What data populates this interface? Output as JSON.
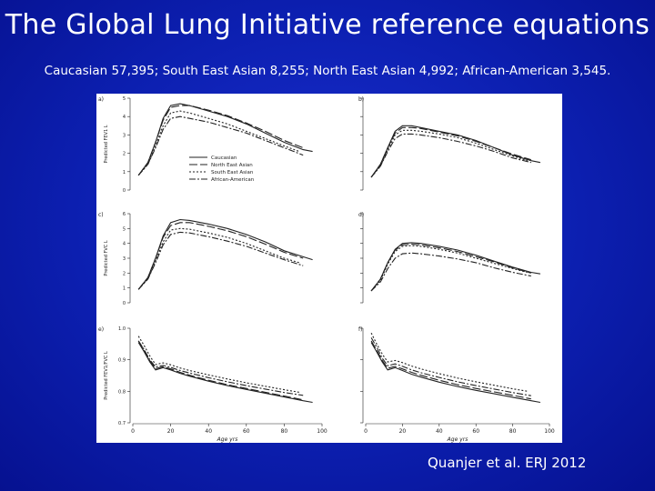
{
  "header": {
    "title": "The Global Lung Initiative reference equations",
    "subtitle": "Caucasian 57,395; South East Asian 8,255; North East Asian 4,992; African-American 3,545."
  },
  "citation": "Quanjer et al. ERJ 2012",
  "colors": {
    "background": "#0c1fb0",
    "text": "#ffffff",
    "plot_ink": "#222222"
  },
  "chart_data": [
    {
      "panel": "a)",
      "type": "line",
      "ylabel": "Predicted FEV1 L",
      "xlabel": "",
      "xlim": [
        0,
        100
      ],
      "ylim": [
        0,
        5
      ],
      "yticks": [
        0,
        1,
        2,
        3,
        4,
        5
      ],
      "xticks": [
        0,
        20,
        40,
        60,
        80,
        100
      ],
      "legend_position": "bottom-center",
      "series": [
        {
          "name": "Caucasian",
          "x": [
            3,
            8,
            12,
            16,
            20,
            25,
            30,
            40,
            50,
            60,
            70,
            80,
            90,
            95
          ],
          "y": [
            0.8,
            1.5,
            2.6,
            3.9,
            4.6,
            4.7,
            4.6,
            4.3,
            4.0,
            3.6,
            3.1,
            2.6,
            2.2,
            2.1
          ]
        },
        {
          "name": "North East Asian",
          "x": [
            3,
            8,
            12,
            16,
            20,
            25,
            30,
            40,
            50,
            60,
            70,
            80,
            90
          ],
          "y": [
            0.8,
            1.5,
            2.6,
            3.8,
            4.5,
            4.6,
            4.6,
            4.35,
            4.05,
            3.65,
            3.2,
            2.7,
            2.3
          ]
        },
        {
          "name": "South East Asian",
          "x": [
            3,
            8,
            12,
            16,
            20,
            25,
            30,
            40,
            50,
            60,
            70,
            80,
            88
          ],
          "y": [
            0.8,
            1.4,
            2.4,
            3.5,
            4.2,
            4.3,
            4.2,
            3.9,
            3.6,
            3.2,
            2.8,
            2.4,
            2.1
          ]
        },
        {
          "name": "African-American",
          "x": [
            3,
            8,
            12,
            16,
            20,
            25,
            30,
            40,
            50,
            60,
            70,
            80,
            90
          ],
          "y": [
            0.8,
            1.4,
            2.3,
            3.3,
            3.9,
            4.0,
            3.9,
            3.7,
            3.4,
            3.1,
            2.7,
            2.3,
            1.9
          ]
        }
      ]
    },
    {
      "panel": "b)",
      "type": "line",
      "ylabel": "",
      "xlabel": "",
      "xlim": [
        0,
        100
      ],
      "ylim": [
        0,
        5
      ],
      "series": [
        {
          "name": "",
          "x": [
            3,
            8,
            12,
            16,
            20,
            25,
            30,
            40,
            50,
            60,
            70,
            80,
            90,
            95
          ],
          "y": [
            0.7,
            1.4,
            2.3,
            3.2,
            3.5,
            3.5,
            3.4,
            3.2,
            3.0,
            2.7,
            2.3,
            1.9,
            1.6,
            1.5
          ]
        },
        {
          "name": "",
          "x": [
            3,
            8,
            12,
            16,
            20,
            25,
            30,
            40,
            50,
            60,
            70,
            80,
            90
          ],
          "y": [
            0.7,
            1.4,
            2.3,
            3.1,
            3.4,
            3.4,
            3.35,
            3.15,
            2.95,
            2.65,
            2.3,
            1.95,
            1.65
          ]
        },
        {
          "name": "",
          "x": [
            3,
            8,
            12,
            16,
            20,
            25,
            30,
            40,
            50,
            60,
            70,
            80,
            88
          ],
          "y": [
            0.7,
            1.3,
            2.2,
            3.0,
            3.25,
            3.25,
            3.2,
            3.05,
            2.85,
            2.55,
            2.2,
            1.85,
            1.6
          ]
        },
        {
          "name": "",
          "x": [
            3,
            8,
            12,
            16,
            20,
            25,
            30,
            40,
            50,
            60,
            70,
            80,
            90
          ],
          "y": [
            0.7,
            1.3,
            2.1,
            2.8,
            3.05,
            3.05,
            3.0,
            2.85,
            2.65,
            2.4,
            2.1,
            1.75,
            1.5
          ]
        }
      ]
    },
    {
      "panel": "c)",
      "type": "line",
      "ylabel": "Predicted FVC L",
      "xlabel": "",
      "xlim": [
        0,
        100
      ],
      "ylim": [
        0,
        6
      ],
      "yticks": [
        0,
        1,
        2,
        3,
        4,
        5,
        6
      ],
      "xticks": [
        0,
        20,
        40,
        60,
        80,
        100
      ],
      "series": [
        {
          "name": "Caucasian",
          "x": [
            3,
            8,
            12,
            16,
            20,
            25,
            30,
            40,
            50,
            60,
            70,
            80,
            90,
            95
          ],
          "y": [
            0.9,
            1.7,
            3.0,
            4.5,
            5.4,
            5.6,
            5.55,
            5.3,
            5.0,
            4.6,
            4.1,
            3.5,
            3.1,
            2.9
          ]
        },
        {
          "name": "North East Asian",
          "x": [
            3,
            8,
            12,
            16,
            20,
            25,
            30,
            40,
            50,
            60,
            70,
            80,
            90
          ],
          "y": [
            0.9,
            1.7,
            3.0,
            4.4,
            5.2,
            5.4,
            5.4,
            5.15,
            4.85,
            4.45,
            3.95,
            3.4,
            3.0
          ]
        },
        {
          "name": "South East Asian",
          "x": [
            3,
            8,
            12,
            16,
            20,
            25,
            30,
            40,
            50,
            60,
            70,
            80,
            88
          ],
          "y": [
            0.9,
            1.6,
            2.8,
            4.1,
            4.9,
            5.0,
            4.95,
            4.7,
            4.4,
            4.0,
            3.5,
            3.0,
            2.7
          ]
        },
        {
          "name": "African-American",
          "x": [
            3,
            8,
            12,
            16,
            20,
            25,
            30,
            40,
            50,
            60,
            70,
            80,
            90
          ],
          "y": [
            0.9,
            1.6,
            2.7,
            3.9,
            4.6,
            4.75,
            4.7,
            4.45,
            4.15,
            3.8,
            3.35,
            2.9,
            2.5
          ]
        }
      ]
    },
    {
      "panel": "d)",
      "type": "line",
      "ylabel": "",
      "xlabel": "",
      "xlim": [
        0,
        100
      ],
      "ylim": [
        0,
        6
      ],
      "series": [
        {
          "name": "",
          "x": [
            3,
            8,
            12,
            16,
            20,
            25,
            30,
            40,
            50,
            60,
            70,
            80,
            90,
            95
          ],
          "y": [
            0.8,
            1.6,
            2.7,
            3.6,
            4.0,
            4.05,
            4.0,
            3.8,
            3.55,
            3.2,
            2.8,
            2.4,
            2.05,
            1.95
          ]
        },
        {
          "name": "",
          "x": [
            3,
            8,
            12,
            16,
            20,
            25,
            30,
            40,
            50,
            60,
            70,
            80,
            90
          ],
          "y": [
            0.8,
            1.6,
            2.7,
            3.55,
            3.9,
            3.95,
            3.9,
            3.7,
            3.45,
            3.1,
            2.75,
            2.35,
            2.0
          ]
        },
        {
          "name": "",
          "x": [
            3,
            8,
            12,
            16,
            20,
            25,
            30,
            40,
            50,
            60,
            70,
            80,
            88
          ],
          "y": [
            0.8,
            1.5,
            2.6,
            3.45,
            3.8,
            3.85,
            3.8,
            3.6,
            3.35,
            3.0,
            2.65,
            2.3,
            2.05
          ]
        },
        {
          "name": "",
          "x": [
            3,
            8,
            12,
            16,
            20,
            25,
            30,
            40,
            50,
            60,
            70,
            80,
            90
          ],
          "y": [
            0.8,
            1.4,
            2.3,
            3.0,
            3.3,
            3.35,
            3.3,
            3.15,
            2.95,
            2.7,
            2.35,
            2.05,
            1.8
          ]
        }
      ]
    },
    {
      "panel": "e)",
      "type": "line",
      "ylabel": "Predicted FEV1/FVC L",
      "xlabel": "Age yrs",
      "xlim": [
        0,
        100
      ],
      "ylim": [
        0.7,
        1.0
      ],
      "yticks": [
        0.7,
        0.8,
        0.9,
        1.0
      ],
      "xticks": [
        0,
        20,
        40,
        60,
        80,
        100
      ],
      "series": [
        {
          "name": "Caucasian",
          "x": [
            3,
            6,
            9,
            12,
            16,
            20,
            25,
            30,
            40,
            50,
            60,
            70,
            80,
            90,
            95
          ],
          "y": [
            0.955,
            0.925,
            0.893,
            0.868,
            0.875,
            0.868,
            0.857,
            0.848,
            0.832,
            0.818,
            0.806,
            0.794,
            0.782,
            0.77,
            0.765
          ]
        },
        {
          "name": "North East Asian",
          "x": [
            3,
            6,
            9,
            12,
            16,
            20,
            25,
            30,
            40,
            50,
            60,
            70,
            80,
            90
          ],
          "y": [
            0.96,
            0.93,
            0.897,
            0.872,
            0.878,
            0.871,
            0.86,
            0.851,
            0.835,
            0.821,
            0.809,
            0.797,
            0.785,
            0.773
          ]
        },
        {
          "name": "South East Asian",
          "x": [
            3,
            6,
            9,
            12,
            16,
            20,
            25,
            30,
            40,
            50,
            60,
            70,
            80,
            88
          ],
          "y": [
            0.975,
            0.945,
            0.912,
            0.885,
            0.89,
            0.884,
            0.874,
            0.866,
            0.852,
            0.839,
            0.827,
            0.816,
            0.805,
            0.797
          ]
        },
        {
          "name": "African-American",
          "x": [
            3,
            6,
            9,
            12,
            16,
            20,
            25,
            30,
            40,
            50,
            60,
            70,
            80,
            90
          ],
          "y": [
            0.96,
            0.932,
            0.9,
            0.877,
            0.882,
            0.876,
            0.866,
            0.858,
            0.843,
            0.83,
            0.818,
            0.807,
            0.796,
            0.787
          ]
        }
      ]
    },
    {
      "panel": "f)",
      "type": "line",
      "ylabel": "",
      "xlabel": "Age yrs",
      "xlim": [
        0,
        100
      ],
      "ylim": [
        0.7,
        1.0
      ],
      "xticks": [
        0,
        20,
        40,
        60,
        80,
        100
      ],
      "series": [
        {
          "name": "",
          "x": [
            3,
            6,
            9,
            12,
            16,
            20,
            25,
            30,
            40,
            50,
            60,
            70,
            80,
            90,
            95
          ],
          "y": [
            0.955,
            0.925,
            0.893,
            0.868,
            0.875,
            0.866,
            0.854,
            0.845,
            0.829,
            0.815,
            0.803,
            0.792,
            0.781,
            0.77,
            0.765
          ]
        },
        {
          "name": "",
          "x": [
            3,
            6,
            9,
            12,
            16,
            20,
            25,
            30,
            40,
            50,
            60,
            70,
            80,
            90
          ],
          "y": [
            0.96,
            0.93,
            0.898,
            0.873,
            0.879,
            0.871,
            0.86,
            0.851,
            0.835,
            0.821,
            0.809,
            0.798,
            0.787,
            0.776
          ]
        },
        {
          "name": "",
          "x": [
            3,
            6,
            9,
            12,
            16,
            20,
            25,
            30,
            40,
            50,
            60,
            70,
            80,
            88
          ],
          "y": [
            0.985,
            0.95,
            0.918,
            0.893,
            0.898,
            0.891,
            0.88,
            0.871,
            0.856,
            0.842,
            0.83,
            0.819,
            0.808,
            0.8
          ]
        },
        {
          "name": "",
          "x": [
            3,
            6,
            9,
            12,
            16,
            20,
            25,
            30,
            40,
            50,
            60,
            70,
            80,
            90
          ],
          "y": [
            0.97,
            0.94,
            0.905,
            0.881,
            0.887,
            0.879,
            0.868,
            0.859,
            0.844,
            0.83,
            0.818,
            0.807,
            0.796,
            0.786
          ]
        }
      ]
    }
  ]
}
